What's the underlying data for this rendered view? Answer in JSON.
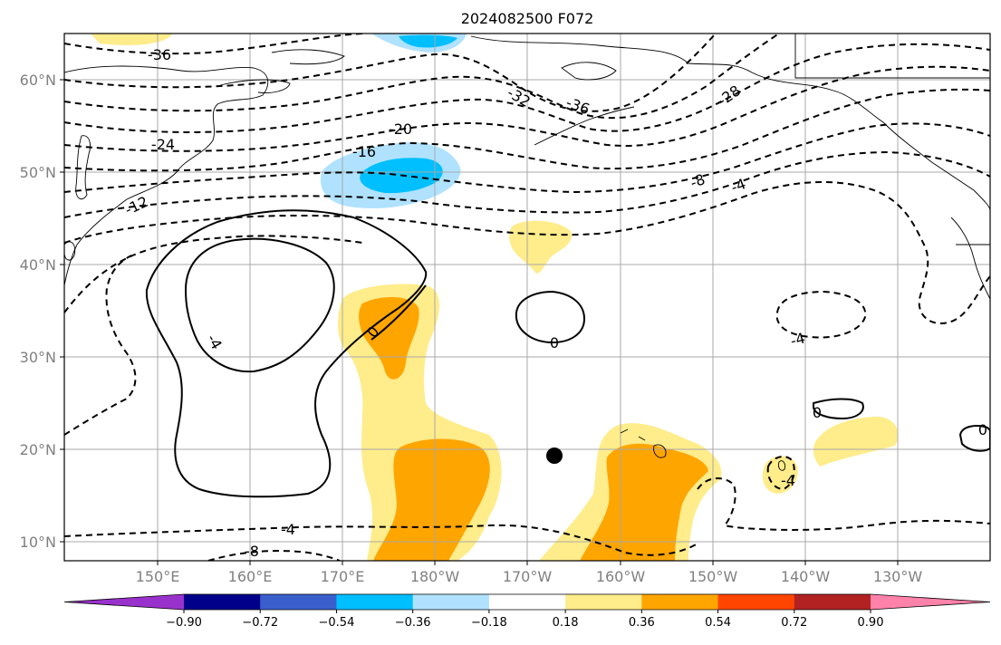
{
  "title": "2024082500 F072",
  "lat_ticks": [
    "10°N",
    "20°N",
    "30°N",
    "40°N",
    "50°N",
    "60°N"
  ],
  "lon_ticks": [
    "150°E",
    "160°E",
    "170°E",
    "180°W",
    "170°W",
    "160°W",
    "150°W",
    "140°W",
    "130°W"
  ],
  "colorbar": {
    "labels": [
      "−0.90",
      "−0.72",
      "−0.54",
      "−0.36",
      "−0.18",
      "0.18",
      "0.36",
      "0.54",
      "0.72",
      "0.90"
    ],
    "colors": [
      "#9932cc",
      "#00008b",
      "#3a5fcd",
      "#00bfff",
      "#b0e2ff",
      "#ffffff",
      "#ffec8b",
      "#ffa500",
      "#ff4500",
      "#b22222",
      "#ff82ab"
    ]
  },
  "contour_labels": [
    "-36",
    "-32",
    "-36",
    "-28",
    "-24",
    "-20",
    "-16",
    "-12",
    "-8",
    "-4",
    "-4",
    "-4",
    "-4",
    "-8",
    "0",
    "0",
    "0",
    "0",
    "-4"
  ],
  "marker": "storm-center-dot"
}
